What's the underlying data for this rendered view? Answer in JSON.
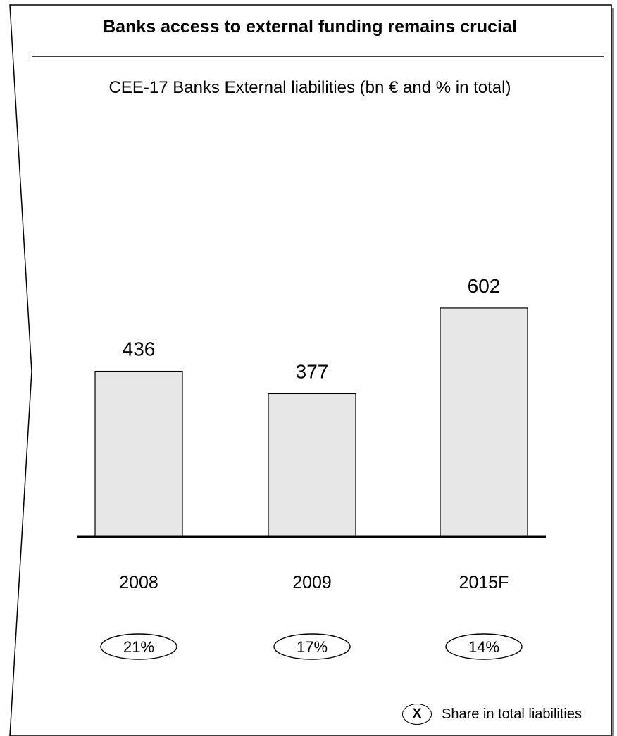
{
  "title": "Banks access to external funding remains crucial",
  "subtitle": "CEE-17 Banks External liabilities (bn € and % in total)",
  "chart_data": {
    "type": "bar",
    "categories": [
      "2008",
      "2009",
      "2015F"
    ],
    "values": [
      436,
      377,
      602
    ],
    "share_in_total": [
      "21%",
      "17%",
      "14%"
    ],
    "ylim": [
      0,
      800
    ],
    "grid": false,
    "bar_color": "#e6e6e6",
    "xlabel": "",
    "ylabel": ""
  },
  "legend": {
    "marker": "X",
    "label": "Share in total liabilities"
  }
}
